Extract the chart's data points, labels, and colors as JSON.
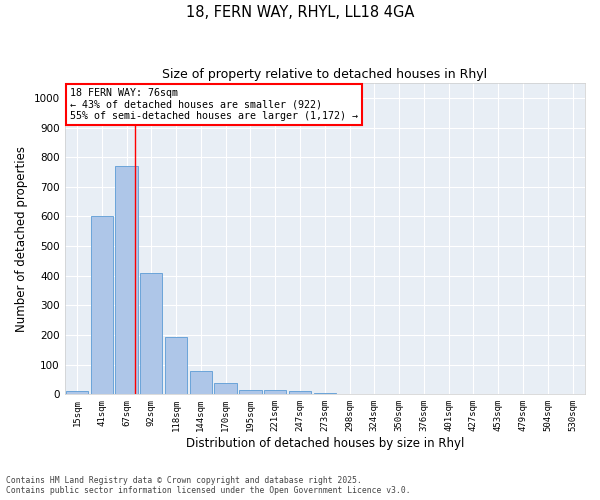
{
  "title_line1": "18, FERN WAY, RHYL, LL18 4GA",
  "title_line2": "Size of property relative to detached houses in Rhyl",
  "xlabel": "Distribution of detached houses by size in Rhyl",
  "ylabel": "Number of detached properties",
  "categories": [
    "15sqm",
    "41sqm",
    "67sqm",
    "92sqm",
    "118sqm",
    "144sqm",
    "170sqm",
    "195sqm",
    "221sqm",
    "247sqm",
    "273sqm",
    "298sqm",
    "324sqm",
    "350sqm",
    "376sqm",
    "401sqm",
    "427sqm",
    "453sqm",
    "479sqm",
    "504sqm",
    "530sqm"
  ],
  "values": [
    10,
    600,
    770,
    410,
    195,
    80,
    38,
    15,
    15,
    10,
    5,
    0,
    0,
    0,
    0,
    0,
    0,
    0,
    0,
    0,
    0
  ],
  "bar_color": "#aec6e8",
  "bar_edgecolor": "#5b9bd5",
  "vline_x": 2.35,
  "vline_color": "red",
  "annotation_text": "18 FERN WAY: 76sqm\n← 43% of detached houses are smaller (922)\n55% of semi-detached houses are larger (1,172) →",
  "annotation_box_color": "red",
  "ylim": [
    0,
    1050
  ],
  "yticks": [
    0,
    100,
    200,
    300,
    400,
    500,
    600,
    700,
    800,
    900,
    1000
  ],
  "background_color": "#e8eef5",
  "grid_color": "white",
  "footer_line1": "Contains HM Land Registry data © Crown copyright and database right 2025.",
  "footer_line2": "Contains public sector information licensed under the Open Government Licence v3.0."
}
